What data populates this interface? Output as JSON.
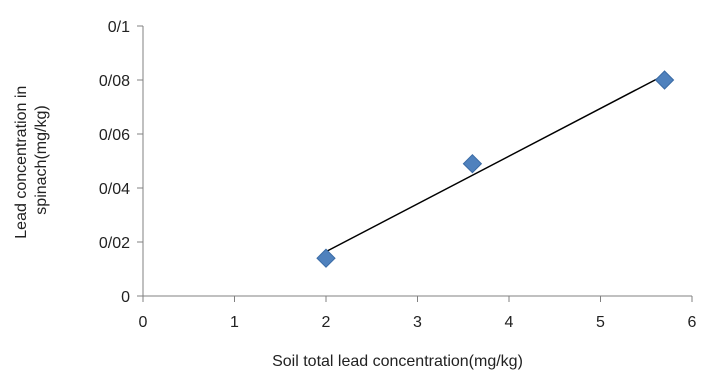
{
  "chart_data": {
    "type": "scatter",
    "title": "",
    "xlabel": "Soil total lead concentration(mg/kg)",
    "ylabel_lines": [
      "Lead concentration in",
      "spinach(mg/kg)"
    ],
    "xlim": [
      0,
      6
    ],
    "ylim": [
      0,
      0.1
    ],
    "x_ticks": [
      0,
      1,
      2,
      3,
      4,
      5,
      6
    ],
    "x_tick_labels": [
      "0",
      "1",
      "2",
      "3",
      "4",
      "5",
      "6"
    ],
    "y_ticks": [
      0,
      0.02,
      0.04,
      0.06,
      0.08,
      0.1
    ],
    "y_tick_labels": [
      "0",
      "0/02",
      "0/04",
      "0/06",
      "0/08",
      "0/1"
    ],
    "grid": false,
    "legend": "none",
    "marker": "diamond",
    "marker_color": "#4F81BD",
    "trendline_color": "#000000",
    "series": [
      {
        "points": [
          {
            "x": 2,
            "y": 0.014
          },
          {
            "x": 3.6,
            "y": 0.049
          },
          {
            "x": 5.7,
            "y": 0.08
          }
        ]
      }
    ],
    "trendline": {
      "type": "linear",
      "x_range": [
        2,
        5.7
      ]
    }
  }
}
